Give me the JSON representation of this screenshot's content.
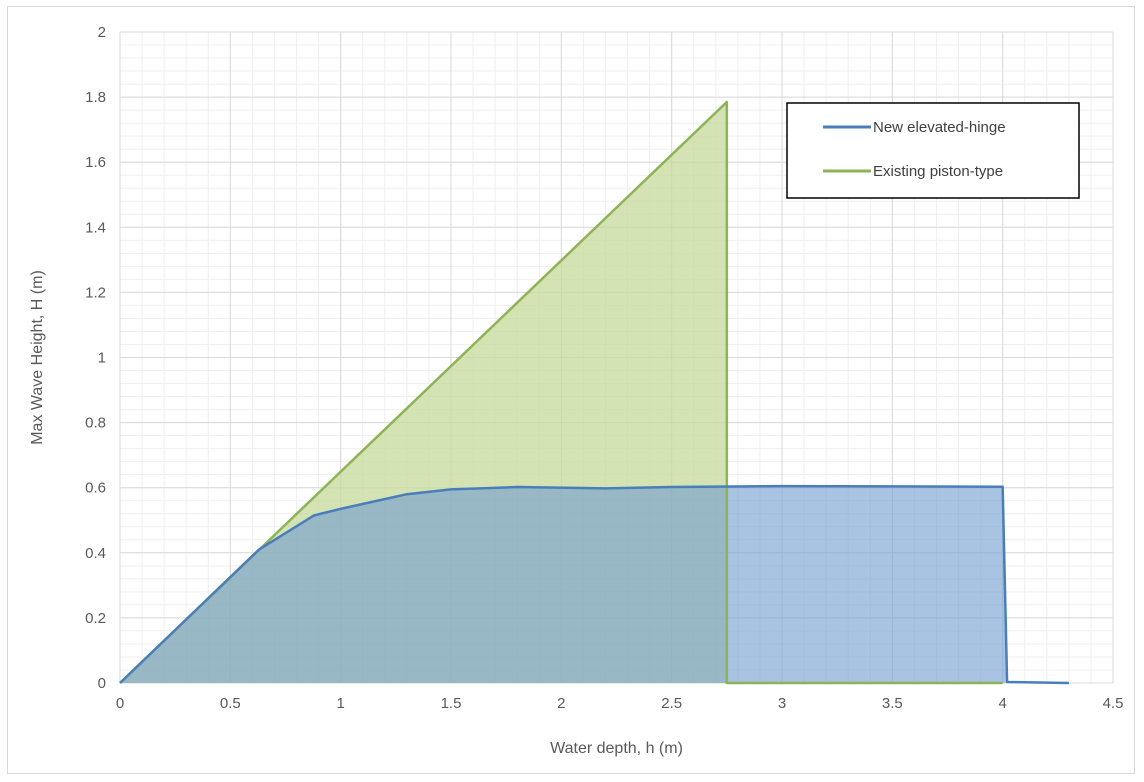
{
  "chart_data": {
    "type": "area",
    "title": "",
    "xlabel": "Water depth, h (m)",
    "ylabel": "Max Wave Height, H (m)",
    "xlim": [
      0,
      4.5
    ],
    "ylim": [
      0,
      2
    ],
    "x_ticks": [
      0,
      0.5,
      1,
      1.5,
      2,
      2.5,
      3,
      3.5,
      4,
      4.5
    ],
    "y_ticks": [
      0,
      0.2,
      0.4,
      0.6,
      0.8,
      1,
      1.2,
      1.4,
      1.6,
      1.8,
      2
    ],
    "x_tick_labels": [
      "0",
      "0.5",
      "1",
      "1.5",
      "2",
      "2.5",
      "3",
      "3.5",
      "4",
      "4.5"
    ],
    "y_tick_labels": [
      "0",
      "0.2",
      "0.4",
      "0.6",
      "0.8",
      "1",
      "1.2",
      "1.4",
      "1.6",
      "1.8",
      "2"
    ],
    "grid": "major and minor",
    "legend_position": "top-right",
    "series": [
      {
        "name": "Existing piston-type",
        "color": "#8db356",
        "fill": "#c5d99b",
        "points": [
          [
            0,
            0
          ],
          [
            2.75,
            1.785
          ],
          [
            2.75,
            0
          ],
          [
            4.0,
            0
          ]
        ]
      },
      {
        "name": "New elevated-hinge",
        "color": "#4a7ebb",
        "fill": "#6f9bd1",
        "points": [
          [
            0,
            0
          ],
          [
            0.63,
            0.41
          ],
          [
            0.88,
            0.515
          ],
          [
            1.0,
            0.535
          ],
          [
            1.3,
            0.58
          ],
          [
            1.5,
            0.595
          ],
          [
            1.8,
            0.602
          ],
          [
            2.2,
            0.598
          ],
          [
            2.5,
            0.602
          ],
          [
            3.0,
            0.605
          ],
          [
            3.5,
            0.604
          ],
          [
            4.0,
            0.603
          ],
          [
            4.02,
            0.003
          ],
          [
            4.3,
            0.0
          ]
        ]
      }
    ]
  }
}
